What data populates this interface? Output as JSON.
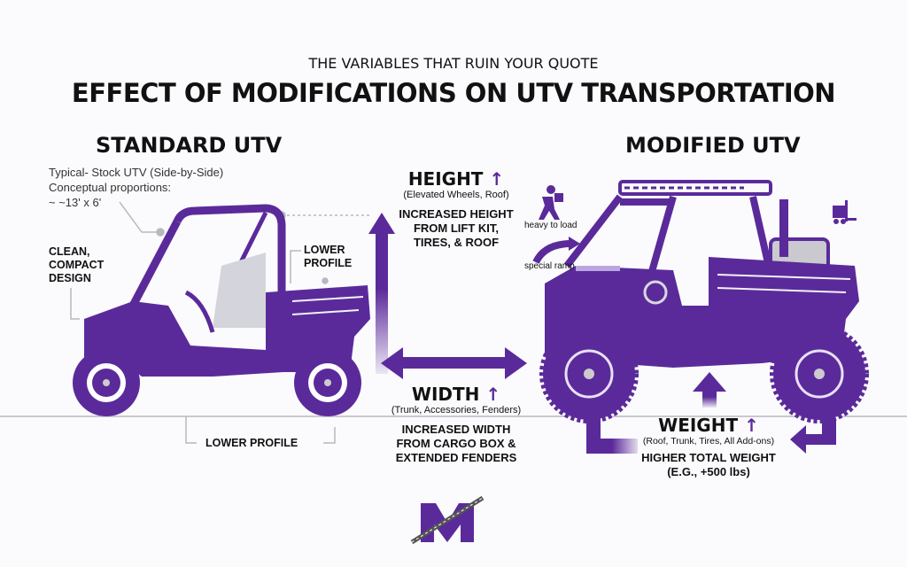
{
  "header": {
    "subtitle": "THE VARIABLES THAT RUIN YOUR QUOTE",
    "title": "EFFECT OF MODIFICATIONS ON UTV TRANSPORTATION"
  },
  "standard": {
    "title": "STANDARD UTV",
    "desc": [
      "Typical- Stock UTV (Side-by-Side)",
      "Conceptual proportions:",
      "~ ~13' x 6'"
    ],
    "clean": [
      "CLEAN,",
      "COMPACT",
      "DESIGN"
    ],
    "lower_profile_side": [
      "LOWER",
      "PROFILE"
    ],
    "lower_profile_bottom": "LOWER PROFILE"
  },
  "height": {
    "title": "HEIGHT",
    "sub": "(Elevated Wheels, Roof)",
    "detail": [
      "INCREASED HEIGHT",
      "FROM LIFT KIT,",
      "TIRES, & ROOF"
    ]
  },
  "icons": {
    "heavy": "heavy to load",
    "ramp": "special ramp"
  },
  "width": {
    "title": "WIDTH",
    "sub": "(Trunk, Accessories, Fenders)",
    "detail": [
      "INCREASED WIDTH",
      "FROM CARGO BOX &",
      "EXTENDED FENDERS"
    ]
  },
  "modified": {
    "title": "MODIFIED UTV"
  },
  "weight": {
    "title": "WEIGHT",
    "sub": "(Roof, Trunk, Tires, All Add-ons)",
    "detail": [
      "HIGHER TOTAL WEIGHT",
      "(E.G., +500 lbs)"
    ]
  },
  "logo": {
    "letter": "M"
  },
  "colors": {
    "purple": "#5b2a9a",
    "gray": "#c9c9cf"
  }
}
